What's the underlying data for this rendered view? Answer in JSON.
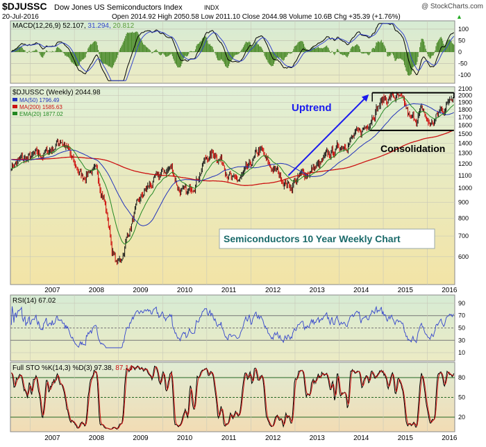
{
  "header": {
    "symbol": "$DJUSSC",
    "name": "Dow Jones US Semiconductors Index",
    "exchange": "INDX",
    "date": "20-Jul-2016",
    "quote": "Open 2014.92  High 2050.58  Low 2011.10  Close 2044.98  Volume 10.6B  Chg +35.39 (+1.76%)",
    "quote_arrow": "▲",
    "watermark": "@ StockCharts.com"
  },
  "colors": {
    "bg_top": "#d9ecd0",
    "bg_bottom": "#efe6b8",
    "price_bg_top": "#e2efd2",
    "price_bg_bottom": "#f3e3a9",
    "price_up": "#111111",
    "price_down": "#cc0000",
    "ma50": "#2233bb",
    "ma200": "#cc1111",
    "ema20": "#228822",
    "macd_line": "#000000",
    "macd_signal": "#3344cc",
    "macd_hist": "#4a8a2a",
    "rsi_line": "#3344cc",
    "sto_k": "#000000",
    "sto_d": "#cc1111",
    "annotation": "#1a1aee",
    "title_box_text": "#1a6a6a"
  },
  "chart_data": [
    {
      "panel": "macd",
      "type": "line",
      "title": "MACD(12,26,9) 52.107, 31.294, 20.812",
      "legend": [
        {
          "text": "MACD(12,26,9) 52.107,",
          "color": "#000000"
        },
        {
          "text": "31.294,",
          "color": "#3344cc"
        },
        {
          "text": "20.812",
          "color": "#5a9a3a"
        }
      ],
      "y_ticks": [
        "100",
        "50",
        "0",
        "-50",
        "-100"
      ],
      "ylim": [
        -130,
        130
      ],
      "grid": true
    },
    {
      "panel": "price",
      "type": "bar",
      "title": "$DJUSSC (Weekly) 2044.98",
      "legend": [
        {
          "text": "MA(50) 1796.49",
          "color": "#2233bb"
        },
        {
          "text": "MA(200) 1585.63",
          "color": "#cc1111"
        },
        {
          "text": "EMA(20) 1877.02",
          "color": "#228822"
        }
      ],
      "y_ticks": [
        "2100",
        "2000",
        "1900",
        "1800",
        "1700",
        "1600",
        "1500",
        "1400",
        "1300",
        "1200",
        "1100",
        "1000",
        "900",
        "800",
        "700",
        "600"
      ],
      "y_log": true,
      "ylim": [
        500,
        2100
      ],
      "x_ticks": [
        "2007",
        "2008",
        "2009",
        "2010",
        "2011",
        "2012",
        "2013",
        "2014",
        "2015",
        "2016"
      ],
      "price_anchors": [
        [
          2006.5,
          1180
        ],
        [
          2006.8,
          1230
        ],
        [
          2007.0,
          1250
        ],
        [
          2007.3,
          1290
        ],
        [
          2007.5,
          1350
        ],
        [
          2007.7,
          1440
        ],
        [
          2007.85,
          1330
        ],
        [
          2008.0,
          1180
        ],
        [
          2008.2,
          1080
        ],
        [
          2008.35,
          1160
        ],
        [
          2008.5,
          1110
        ],
        [
          2008.65,
          960
        ],
        [
          2008.75,
          800
        ],
        [
          2008.85,
          640
        ],
        [
          2008.95,
          570
        ],
        [
          2009.05,
          580
        ],
        [
          2009.2,
          700
        ],
        [
          2009.4,
          850
        ],
        [
          2009.6,
          980
        ],
        [
          2009.8,
          1050
        ],
        [
          2010.0,
          1120
        ],
        [
          2010.2,
          1170
        ],
        [
          2010.35,
          1010
        ],
        [
          2010.55,
          940
        ],
        [
          2010.8,
          1100
        ],
        [
          2011.0,
          1260
        ],
        [
          2011.2,
          1300
        ],
        [
          2011.4,
          1200
        ],
        [
          2011.6,
          1040
        ],
        [
          2011.8,
          1080
        ],
        [
          2012.0,
          1180
        ],
        [
          2012.2,
          1330
        ],
        [
          2012.4,
          1180
        ],
        [
          2012.6,
          1130
        ],
        [
          2012.75,
          1060
        ],
        [
          2012.9,
          1010
        ],
        [
          2013.0,
          1060
        ],
        [
          2013.3,
          1130
        ],
        [
          2013.6,
          1200
        ],
        [
          2013.9,
          1330
        ],
        [
          2014.2,
          1430
        ],
        [
          2014.45,
          1490
        ],
        [
          2014.6,
          1580
        ],
        [
          2014.8,
          1800
        ],
        [
          2015.0,
          1930
        ],
        [
          2015.2,
          1990
        ],
        [
          2015.35,
          1950
        ],
        [
          2015.5,
          1820
        ],
        [
          2015.62,
          1650
        ],
        [
          2015.75,
          1700
        ],
        [
          2015.9,
          1780
        ],
        [
          2016.0,
          1630
        ],
        [
          2016.12,
          1620
        ],
        [
          2016.3,
          1790
        ],
        [
          2016.45,
          1870
        ],
        [
          2016.55,
          2045
        ]
      ],
      "annotations": [
        {
          "text": "Uptrend",
          "color": "#1a1aee"
        },
        {
          "text": "Consolidation",
          "color": "#000000"
        }
      ],
      "lines": [
        {
          "name": "uptrend-arrow",
          "from": [
            2012.85,
            1100
          ],
          "to": [
            2014.65,
            2000
          ]
        },
        {
          "name": "resistance-line",
          "from": [
            2014.75,
            2040
          ],
          "to": [
            2016.6,
            2040
          ]
        },
        {
          "name": "support-line",
          "from": [
            2014.7,
            1540
          ],
          "to": [
            2016.6,
            1540
          ]
        }
      ],
      "title_box": "Semiconductors 10 Year Weekly Chart"
    },
    {
      "panel": "rsi",
      "type": "line",
      "title": "RSI(14) 67.02",
      "y_ticks": [
        "90",
        "70",
        "50",
        "30",
        "10"
      ],
      "ylim": [
        0,
        100
      ],
      "reference_lines": [
        70,
        50,
        30
      ]
    },
    {
      "panel": "sto",
      "type": "line",
      "title": "Full STO %K(14,3) %D(3) 97.38, 87.14",
      "legend": [
        {
          "text": "Full STO %K(14,3) %D(3) 97.38,",
          "color": "#000000"
        },
        {
          "text": "87.14",
          "color": "#cc1111"
        }
      ],
      "y_ticks": [
        "80",
        "50",
        "20"
      ],
      "ylim": [
        0,
        100
      ],
      "reference_lines": [
        80,
        50,
        20
      ],
      "x_ticks": [
        "2007",
        "2008",
        "2009",
        "2010",
        "2011",
        "2012",
        "2013",
        "2014",
        "2015",
        "2016"
      ]
    }
  ]
}
